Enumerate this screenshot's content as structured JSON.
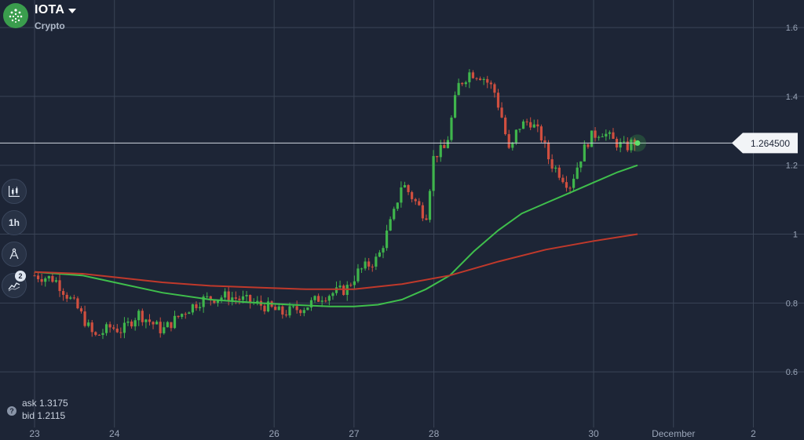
{
  "header": {
    "title": "IOTA",
    "subtitle": "Crypto",
    "logo_icon": "iota-logo-icon"
  },
  "toolbar": {
    "items": [
      {
        "name": "chart-type-button",
        "icon": "candlestick-icon"
      },
      {
        "name": "timeframe-button",
        "label": "1h"
      },
      {
        "name": "drawing-tools-button",
        "icon": "compass-icon"
      },
      {
        "name": "indicators-button",
        "icon": "indicator-icon",
        "badge": "2"
      }
    ]
  },
  "quote": {
    "ask": "ask 1.3175",
    "bid": "bid 1.2115"
  },
  "colors": {
    "background": "#1d2536",
    "grid": "#3a4456",
    "up": "#3fb54c",
    "down": "#d04f3f",
    "ma_fast": "#3fbf4c",
    "ma_slow": "#c0392b",
    "price_line": "#d0d6e0"
  },
  "chart_data": {
    "type": "candlestick",
    "title": "",
    "xlabel": "",
    "ylabel": "",
    "ylim": [
      0.45,
      1.68
    ],
    "y_ticks": [
      0.6,
      0.8,
      1,
      1.2,
      1.4,
      1.6
    ],
    "y_tick_labels": [
      "0.6",
      "0.8",
      "1",
      "1.2",
      "1.4",
      "1.6"
    ],
    "x_ticks": [
      {
        "label": "23",
        "day": 23
      },
      {
        "label": "24",
        "day": 24
      },
      {
        "label": "26",
        "day": 26
      },
      {
        "label": "27",
        "day": 27
      },
      {
        "label": "28",
        "day": 28
      },
      {
        "label": "30",
        "day": 30
      },
      {
        "label": "December",
        "day": 31
      },
      {
        "label": "2",
        "day": 32
      }
    ],
    "x_range": [
      23,
      32.3
    ],
    "current_price": 1.2645,
    "current_price_label": "1.264500",
    "price_keypoints": [
      [
        23.0,
        0.88
      ],
      [
        23.25,
        0.87
      ],
      [
        23.55,
        0.78
      ],
      [
        23.75,
        0.7
      ],
      [
        23.95,
        0.73
      ],
      [
        24.1,
        0.72
      ],
      [
        24.3,
        0.77
      ],
      [
        24.6,
        0.72
      ],
      [
        24.9,
        0.78
      ],
      [
        25.1,
        0.81
      ],
      [
        25.4,
        0.82
      ],
      [
        25.6,
        0.81
      ],
      [
        25.9,
        0.79
      ],
      [
        26.1,
        0.77
      ],
      [
        26.4,
        0.79
      ],
      [
        26.6,
        0.82
      ],
      [
        26.9,
        0.84
      ],
      [
        27.05,
        0.89
      ],
      [
        27.3,
        0.93
      ],
      [
        27.5,
        1.06
      ],
      [
        27.6,
        1.15
      ],
      [
        27.75,
        1.1
      ],
      [
        27.9,
        1.05
      ],
      [
        28.0,
        1.23
      ],
      [
        28.15,
        1.25
      ],
      [
        28.3,
        1.43
      ],
      [
        28.45,
        1.47
      ],
      [
        28.6,
        1.46
      ],
      [
        28.75,
        1.42
      ],
      [
        28.85,
        1.34
      ],
      [
        28.95,
        1.23
      ],
      [
        29.05,
        1.31
      ],
      [
        29.2,
        1.33
      ],
      [
        29.35,
        1.28
      ],
      [
        29.45,
        1.21
      ],
      [
        29.6,
        1.17
      ],
      [
        29.7,
        1.14
      ],
      [
        29.85,
        1.23
      ],
      [
        29.95,
        1.28
      ],
      [
        30.1,
        1.3
      ],
      [
        30.25,
        1.27
      ],
      [
        30.4,
        1.25
      ],
      [
        30.5,
        1.27
      ],
      [
        30.55,
        1.26
      ]
    ],
    "series": [
      {
        "name": "",
        "kind": "ma_fast",
        "x": [
          23.0,
          23.6,
          24.0,
          24.6,
          25.2,
          25.8,
          26.2,
          26.7,
          27.0,
          27.3,
          27.6,
          27.9,
          28.2,
          28.5,
          28.8,
          29.1,
          29.4,
          29.7,
          30.0,
          30.3,
          30.55
        ],
        "y": [
          0.89,
          0.88,
          0.86,
          0.83,
          0.81,
          0.8,
          0.795,
          0.79,
          0.79,
          0.795,
          0.81,
          0.84,
          0.88,
          0.95,
          1.01,
          1.06,
          1.09,
          1.12,
          1.15,
          1.18,
          1.2
        ]
      },
      {
        "name": "",
        "kind": "ma_slow",
        "x": [
          23.0,
          23.6,
          24.0,
          24.6,
          25.2,
          25.8,
          26.4,
          27.0,
          27.6,
          28.2,
          28.8,
          29.4,
          30.0,
          30.55
        ],
        "y": [
          0.89,
          0.885,
          0.875,
          0.86,
          0.85,
          0.845,
          0.84,
          0.84,
          0.855,
          0.88,
          0.92,
          0.955,
          0.98,
          1.0
        ]
      }
    ]
  }
}
